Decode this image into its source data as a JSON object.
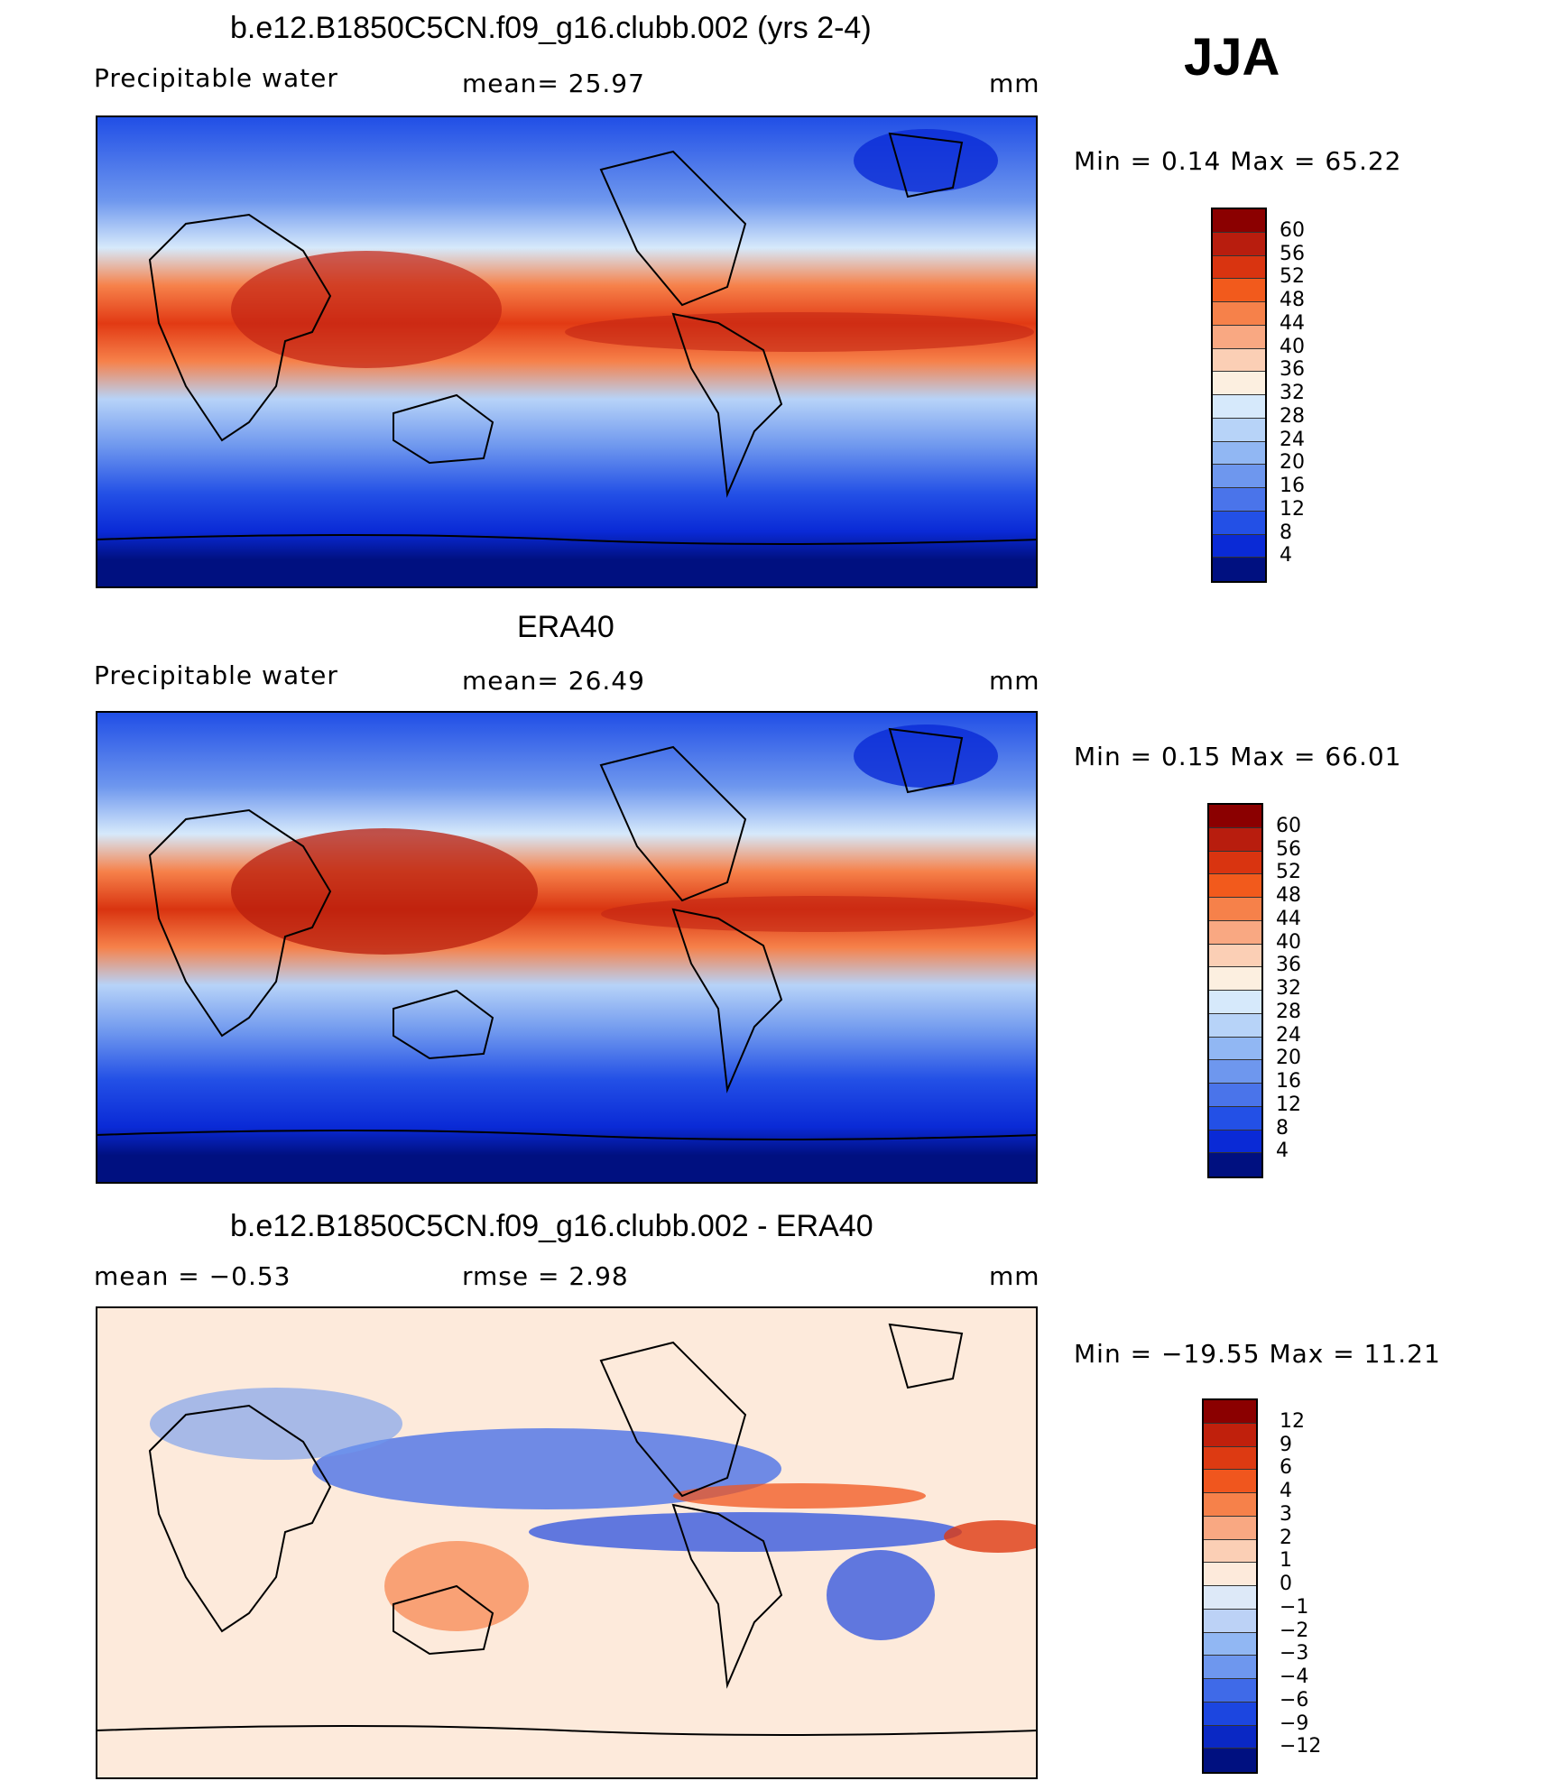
{
  "season": "JJA",
  "panels": [
    {
      "title": "b.e12.B1850C5CN.f09_g16.clubb.002 (yrs 2-4)",
      "left": "Precipitable  water",
      "center": "mean=   25.97",
      "units": "mm",
      "minmax": "Min  =     0.14  Max  =    65.22",
      "levels": [
        "60",
        "56",
        "52",
        "48",
        "44",
        "40",
        "36",
        "32",
        "28",
        "24",
        "20",
        "16",
        "12",
        "8",
        "4"
      ],
      "colors": [
        "#8b0000",
        "#b81d0e",
        "#d93410",
        "#f25a1c",
        "#f6814a",
        "#f9a882",
        "#fbcfb5",
        "#fcefe0",
        "#d6e9fb",
        "#b7d3f8",
        "#91b7f3",
        "#6e97ee",
        "#4a74ea",
        "#2350e6",
        "#0a2ad6",
        "#001080"
      ]
    },
    {
      "title": "ERA40",
      "left": "Precipitable  water",
      "center": "mean=   26.49",
      "units": "mm",
      "minmax": "Min  =     0.15  Max  =    66.01",
      "levels": [
        "60",
        "56",
        "52",
        "48",
        "44",
        "40",
        "36",
        "32",
        "28",
        "24",
        "20",
        "16",
        "12",
        "8",
        "4"
      ],
      "colors": [
        "#8b0000",
        "#b81d0e",
        "#d93410",
        "#f25a1c",
        "#f6814a",
        "#f9a882",
        "#fbcfb5",
        "#fcefe0",
        "#d6e9fb",
        "#b7d3f8",
        "#91b7f3",
        "#6e97ee",
        "#4a74ea",
        "#2350e6",
        "#0a2ad6",
        "#001080"
      ]
    },
    {
      "title": "b.e12.B1850C5CN.f09_g16.clubb.002 - ERA40",
      "left": "mean  =    −0.53",
      "center": "rmse  =     2.98",
      "units": "mm",
      "minmax": "Min  = −19.55  Max  =    11.21",
      "levels": [
        "12",
        "9",
        "6",
        "4",
        "3",
        "2",
        "1",
        "0",
        "−1",
        "−2",
        "−3",
        "−4",
        "−6",
        "−9",
        "−12"
      ],
      "colors": [
        "#8b0000",
        "#c0200c",
        "#dd3a12",
        "#f0561e",
        "#f6814a",
        "#f9a882",
        "#fbcfb5",
        "#fdeadb",
        "#dde9f8",
        "#bcd2f6",
        "#91b7f3",
        "#6e97ee",
        "#3f6ae8",
        "#1c46e0",
        "#0a28c4",
        "#001080"
      ]
    }
  ]
}
